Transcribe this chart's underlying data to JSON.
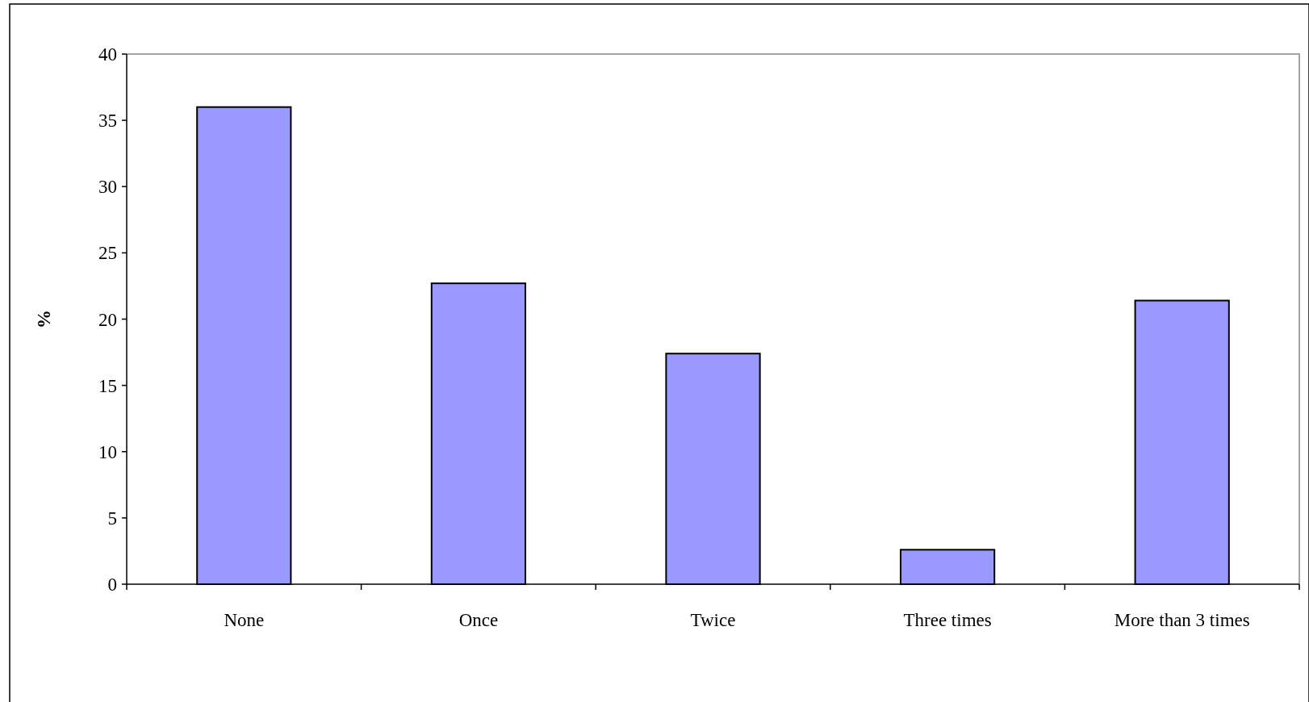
{
  "chart_data": {
    "type": "bar",
    "ylabel": "%",
    "categories": [
      "None",
      "Once",
      "Twice",
      "Three times",
      "More than 3 times"
    ],
    "values": [
      36.0,
      22.7,
      17.4,
      2.6,
      21.4
    ],
    "color": "#9999ff",
    "ylim": [
      0,
      40
    ],
    "yticks": [
      0,
      5,
      10,
      15,
      20,
      25,
      30,
      35,
      40
    ],
    "grid": false
  }
}
